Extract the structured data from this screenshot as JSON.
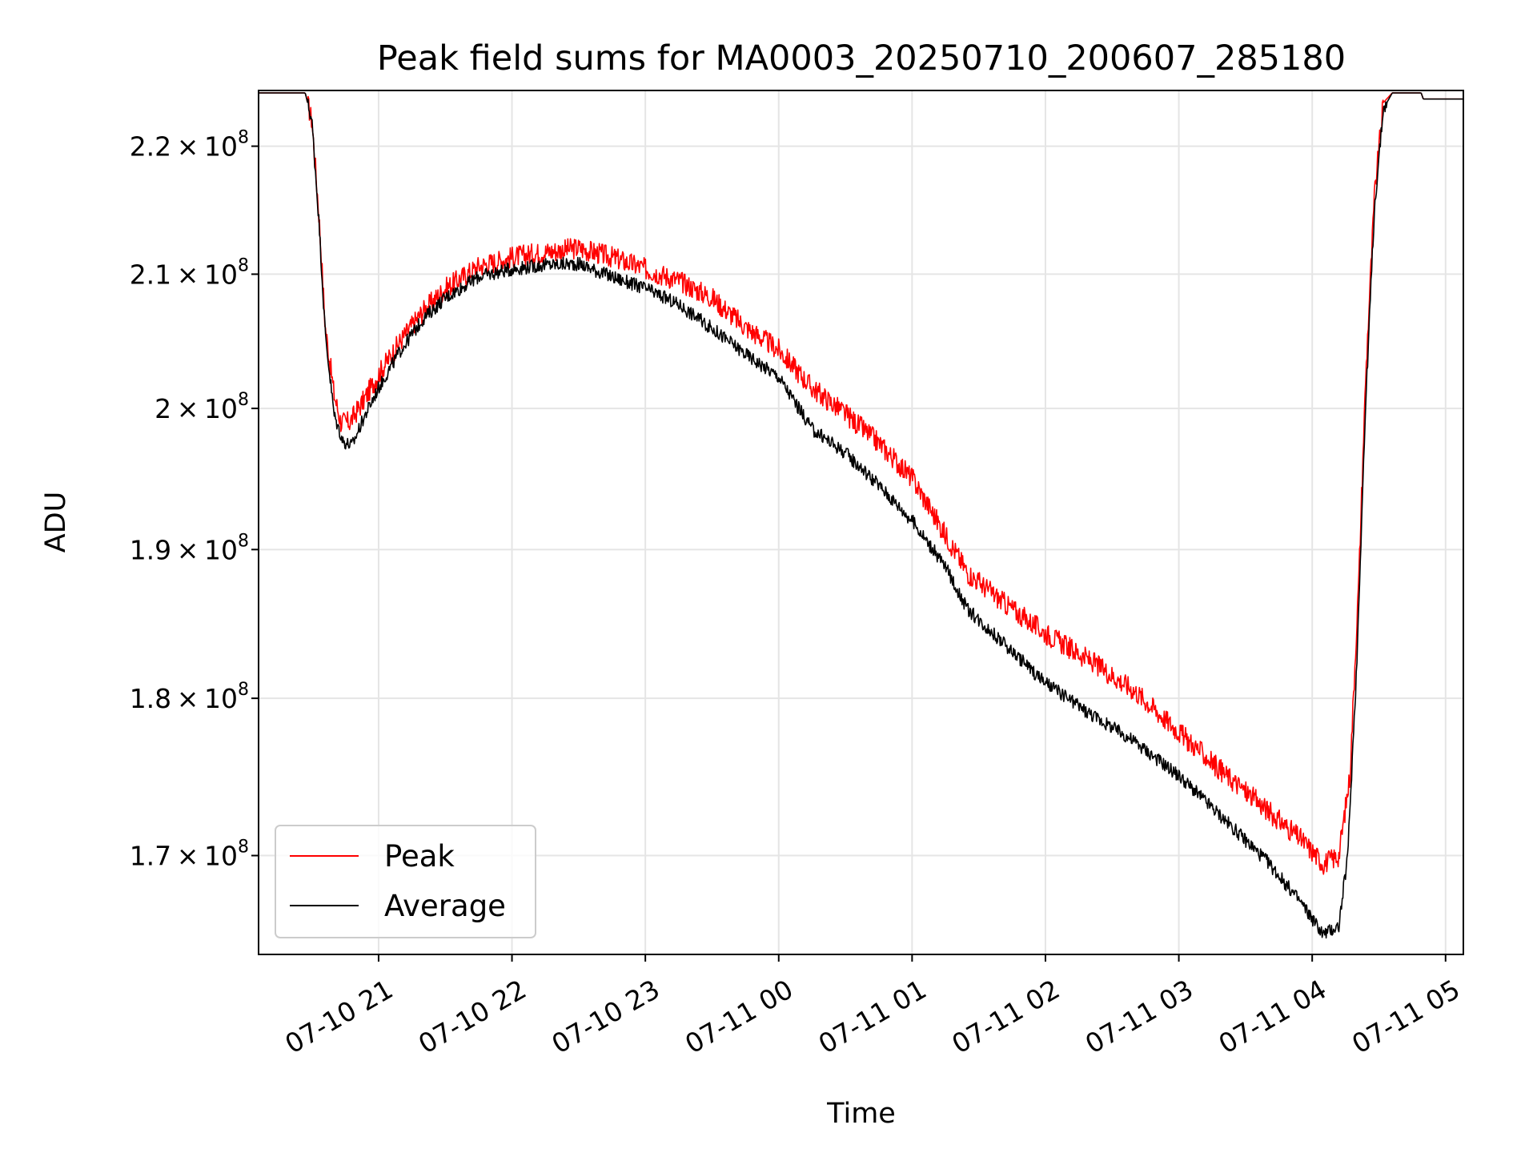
{
  "chart_data": {
    "type": "line",
    "title": "Peak field sums for MA0003_20250710_200607_285180",
    "xlabel": "Time",
    "ylabel": "ADU",
    "x_tick_labels": [
      "07-10 21",
      "07-10 22",
      "07-10 23",
      "07-11 00",
      "07-11 01",
      "07-11 02",
      "07-11 03",
      "07-11 04",
      "07-11 05"
    ],
    "x_ticks": [
      "2025-07-10 21:00",
      "2025-07-10 22:00",
      "2025-07-10 23:00",
      "2025-07-11 00:00",
      "2025-07-11 01:00",
      "2025-07-11 02:00",
      "2025-07-11 03:00",
      "2025-07-11 04:00",
      "2025-07-11 05:00"
    ],
    "xlim": [
      "2025-07-10 20:06",
      "2025-07-11 05:08"
    ],
    "y_scale": "log",
    "ylim": [
      164000000,
      224500000
    ],
    "y_ticks": [
      {
        "value": 170000000,
        "mant": "1.7",
        "exp": "8"
      },
      {
        "value": 180000000,
        "mant": "1.8",
        "exp": "8"
      },
      {
        "value": 190000000,
        "mant": "1.9",
        "exp": "8"
      },
      {
        "value": 200000000,
        "mant": "2",
        "exp": "8"
      },
      {
        "value": 210000000,
        "mant": "2.1",
        "exp": "8"
      },
      {
        "value": 220000000,
        "mant": "2.2",
        "exp": "8"
      }
    ],
    "times_symbol": "×",
    "grid": true,
    "legend_position": "lower-left",
    "series": [
      {
        "name": "Peak",
        "color": "#ff0000",
        "noise": 0.004,
        "points": [
          [
            "2025-07-10 20:06",
            224300000
          ],
          [
            "2025-07-10 20:24",
            224300000
          ],
          [
            "2025-07-10 20:27",
            224300000
          ],
          [
            "2025-07-10 20:30",
            222000000
          ],
          [
            "2025-07-10 20:33",
            215000000
          ],
          [
            "2025-07-10 20:36",
            206000000
          ],
          [
            "2025-07-10 20:40",
            201000000
          ],
          [
            "2025-07-10 20:43",
            199000000
          ],
          [
            "2025-07-10 20:47",
            199000000
          ],
          [
            "2025-07-10 20:53",
            200500000
          ],
          [
            "2025-07-10 21:00",
            202500000
          ],
          [
            "2025-07-10 21:10",
            205000000
          ],
          [
            "2025-07-10 21:20",
            207200000
          ],
          [
            "2025-07-10 21:30",
            208900000
          ],
          [
            "2025-07-10 21:45",
            210600000
          ],
          [
            "2025-07-10 22:00",
            211300000
          ],
          [
            "2025-07-10 22:15",
            211700000
          ],
          [
            "2025-07-10 22:30",
            212000000
          ],
          [
            "2025-07-10 22:45",
            211300000
          ],
          [
            "2025-07-10 23:00",
            210400000
          ],
          [
            "2025-07-10 23:15",
            209500000
          ],
          [
            "2025-07-10 23:30",
            208200000
          ],
          [
            "2025-07-10 23:45",
            206000000
          ],
          [
            "2025-07-11 00:00",
            204300000
          ],
          [
            "2025-07-11 00:15",
            201500000
          ],
          [
            "2025-07-11 00:30",
            199600000
          ],
          [
            "2025-07-11 00:45",
            197500000
          ],
          [
            "2025-07-11 01:00",
            195000000
          ],
          [
            "2025-07-11 01:15",
            191000000
          ],
          [
            "2025-07-11 01:25",
            188400000
          ],
          [
            "2025-07-11 01:40",
            186500000
          ],
          [
            "2025-07-11 02:00",
            184300000
          ],
          [
            "2025-07-11 02:20",
            182500000
          ],
          [
            "2025-07-11 02:40",
            180500000
          ],
          [
            "2025-07-11 03:00",
            177800000
          ],
          [
            "2025-07-11 03:20",
            175200000
          ],
          [
            "2025-07-11 03:40",
            172800000
          ],
          [
            "2025-07-11 03:55",
            171000000
          ],
          [
            "2025-07-11 04:05",
            169500000
          ],
          [
            "2025-07-11 04:12",
            170000000
          ],
          [
            "2025-07-11 04:17",
            175000000
          ],
          [
            "2025-07-11 04:21",
            188000000
          ],
          [
            "2025-07-11 04:24",
            202000000
          ],
          [
            "2025-07-11 04:28",
            216000000
          ],
          [
            "2025-07-11 04:32",
            223500000
          ],
          [
            "2025-07-11 04:36",
            224300000
          ],
          [
            "2025-07-11 04:49",
            224300000
          ],
          [
            "2025-07-11 04:50",
            223800000
          ],
          [
            "2025-07-11 05:08",
            223800000
          ]
        ]
      },
      {
        "name": "Average",
        "color": "#000000",
        "noise": 0.0025,
        "points": [
          [
            "2025-07-10 20:06",
            224300000
          ],
          [
            "2025-07-10 20:24",
            224300000
          ],
          [
            "2025-07-10 20:27",
            224300000
          ],
          [
            "2025-07-10 20:30",
            222000000
          ],
          [
            "2025-07-10 20:33",
            214500000
          ],
          [
            "2025-07-10 20:36",
            205500000
          ],
          [
            "2025-07-10 20:40",
            199500000
          ],
          [
            "2025-07-10 20:44",
            197600000
          ],
          [
            "2025-07-10 20:48",
            197300000
          ],
          [
            "2025-07-10 20:53",
            199200000
          ],
          [
            "2025-07-10 21:00",
            201500000
          ],
          [
            "2025-07-10 21:10",
            204300000
          ],
          [
            "2025-07-10 21:20",
            206600000
          ],
          [
            "2025-07-10 21:30",
            208200000
          ],
          [
            "2025-07-10 21:45",
            209800000
          ],
          [
            "2025-07-10 22:00",
            210400000
          ],
          [
            "2025-07-10 22:15",
            210700000
          ],
          [
            "2025-07-10 22:30",
            210800000
          ],
          [
            "2025-07-10 22:45",
            209800000
          ],
          [
            "2025-07-10 23:00",
            208900000
          ],
          [
            "2025-07-10 23:15",
            207700000
          ],
          [
            "2025-07-10 23:30",
            205900000
          ],
          [
            "2025-07-10 23:45",
            204000000
          ],
          [
            "2025-07-11 00:00",
            202300000
          ],
          [
            "2025-07-11 00:15",
            198500000
          ],
          [
            "2025-07-11 00:30",
            196800000
          ],
          [
            "2025-07-11 00:45",
            194500000
          ],
          [
            "2025-07-11 01:00",
            192000000
          ],
          [
            "2025-07-11 01:15",
            188800000
          ],
          [
            "2025-07-11 01:25",
            185900000
          ],
          [
            "2025-07-11 01:40",
            183800000
          ],
          [
            "2025-07-11 02:00",
            181000000
          ],
          [
            "2025-07-11 02:20",
            179000000
          ],
          [
            "2025-07-11 02:40",
            177200000
          ],
          [
            "2025-07-11 03:00",
            175000000
          ],
          [
            "2025-07-11 03:20",
            172300000
          ],
          [
            "2025-07-11 03:40",
            169600000
          ],
          [
            "2025-07-11 03:55",
            167100000
          ],
          [
            "2025-07-11 04:05",
            165200000
          ],
          [
            "2025-07-11 04:12",
            165700000
          ],
          [
            "2025-07-11 04:16",
            170000000
          ],
          [
            "2025-07-11 04:20",
            182000000
          ],
          [
            "2025-07-11 04:24",
            200000000
          ],
          [
            "2025-07-11 04:28",
            215000000
          ],
          [
            "2025-07-11 04:32",
            223000000
          ],
          [
            "2025-07-11 04:36",
            224300000
          ],
          [
            "2025-07-11 04:49",
            224300000
          ],
          [
            "2025-07-11 04:50",
            223800000
          ],
          [
            "2025-07-11 05:08",
            223800000
          ]
        ]
      }
    ]
  }
}
